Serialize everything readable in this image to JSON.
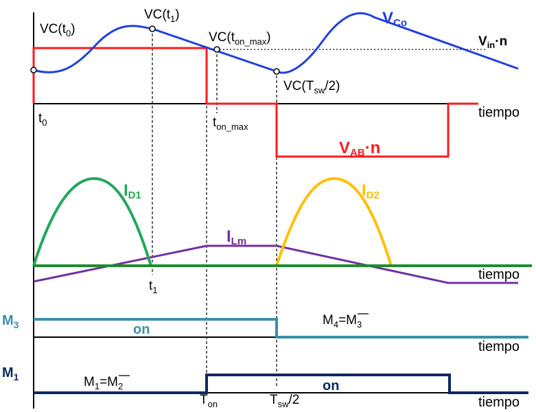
{
  "colors": {
    "vco": "#1f3fe0",
    "vab": "#ff1a1a",
    "id1": "#22a858",
    "id2": "#ffc000",
    "ilm": "#7030a0",
    "m3": "#3c8fa8",
    "m1": "#0a2a5e",
    "axis": "#000000"
  },
  "labels": {
    "vco": {
      "main": "V",
      "sub": "Co"
    },
    "vin_n": {
      "main": "V",
      "sub": "in",
      "suffix": "·n"
    },
    "vab_n": {
      "main": "V",
      "sub": "AB",
      "suffix": "·n"
    },
    "id1": {
      "main": "I",
      "sub": "D1"
    },
    "id2": {
      "main": "I",
      "sub": "D2"
    },
    "ilm": {
      "main": "I",
      "sub": "Lm"
    },
    "vc_t0": {
      "pre": "VC(t",
      "sub": "0",
      "post": ")"
    },
    "vc_t1": {
      "pre": "VC(t",
      "sub": "1",
      "post": ")"
    },
    "vc_ton_max": {
      "pre": "VC(t",
      "sub": "on_max",
      "post": ")"
    },
    "vc_tsw2": {
      "pre": "VC(T",
      "sub": "sw",
      "post": "/2)"
    },
    "t0": {
      "main": "t",
      "sub": "0"
    },
    "ton_max": {
      "main": "t",
      "sub": "on_max"
    },
    "t1": {
      "main": "t",
      "sub": "1"
    },
    "ton": {
      "main": "T",
      "sub": "on"
    },
    "tsw2": {
      "main": "T",
      "sub": "sw",
      "post": "/2"
    },
    "tiempo": "tiempo",
    "m3": {
      "main": "M",
      "sub": "3"
    },
    "m1": {
      "main": "M",
      "sub": "1"
    },
    "on": "on",
    "m4_eq": {
      "pre": "M",
      "sub1": "4",
      "mid": "=M",
      "sub2": "3"
    },
    "m1_eq": {
      "pre": "M",
      "sub1": "1",
      "mid": "=M",
      "sub2": "2"
    }
  }
}
